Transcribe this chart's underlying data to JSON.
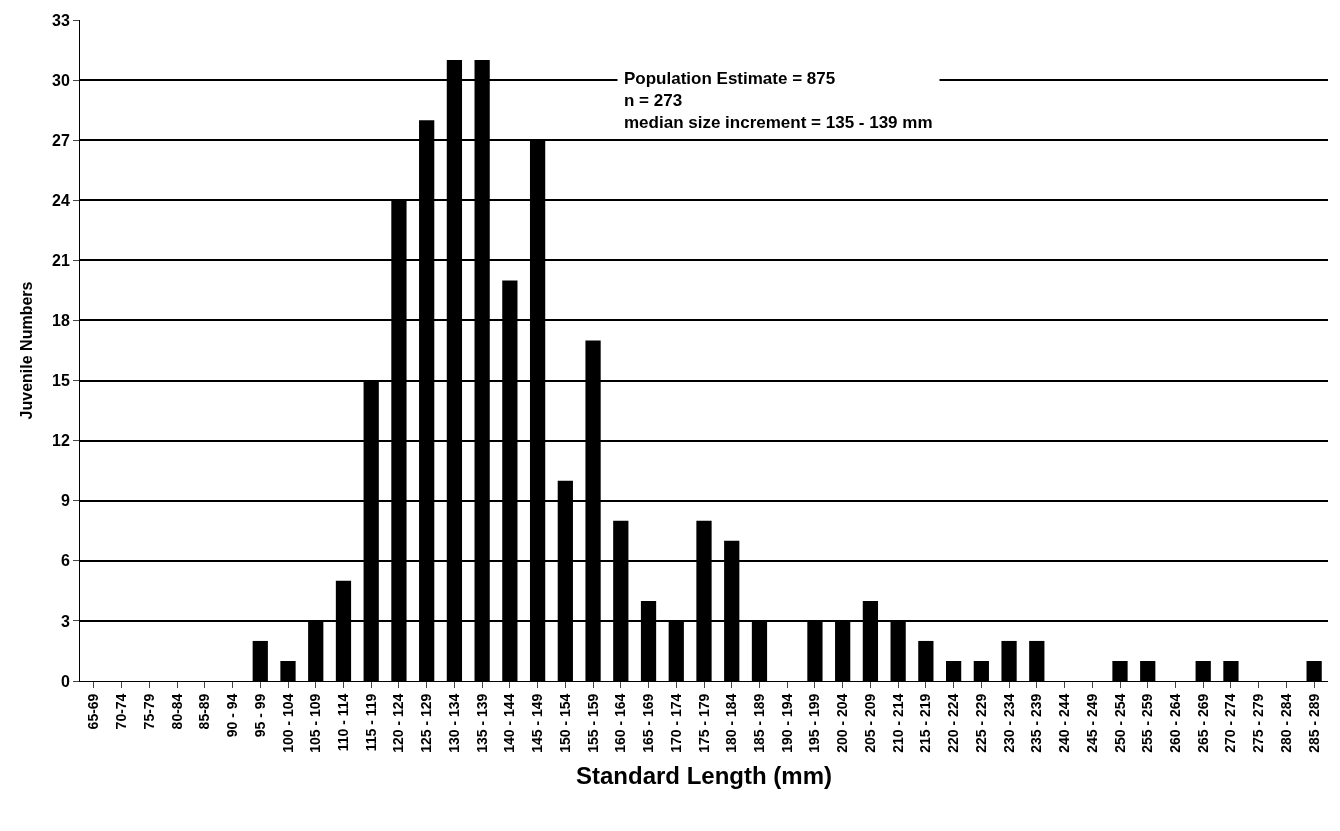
{
  "chart_data": {
    "type": "bar",
    "xlabel": "Standard Length (mm)",
    "ylabel": "Juvenile Numbers",
    "categories": [
      "65-69",
      "70-74",
      "75-79",
      "80-84",
      "85-89",
      "90 - 94",
      "95 - 99",
      "100 - 104",
      "105 - 109",
      "110 - 114",
      "115 - 119",
      "120 - 124",
      "125 - 129",
      "130 - 134",
      "135 - 139",
      "140 - 144",
      "145 - 149",
      "150 - 154",
      "155 - 159",
      "160 - 164",
      "165 - 169",
      "170 - 174",
      "175 - 179",
      "180 - 184",
      "185 - 189",
      "190 - 194",
      "195 - 199",
      "200 - 204",
      "205 - 209",
      "210 - 214",
      "215 - 219",
      "220 - 224",
      "225 - 229",
      "230 - 234",
      "235 - 239",
      "240 - 244",
      "245 - 249",
      "250 - 254",
      "255 - 259",
      "260 - 264",
      "265 - 269",
      "270 - 274",
      "275 - 279",
      "280 - 284",
      "285 - 289"
    ],
    "values": [
      0,
      0,
      0,
      0,
      0,
      0,
      2,
      1,
      3,
      5,
      15,
      24,
      28,
      31,
      31,
      20,
      27,
      10,
      17,
      8,
      4,
      3,
      8,
      7,
      3,
      0,
      3,
      3,
      4,
      3,
      2,
      1,
      1,
      2,
      2,
      0,
      0,
      1,
      1,
      0,
      1,
      1,
      0,
      0,
      1
    ],
    "color": "#000000",
    "ylim": [
      0,
      33
    ],
    "yticks": [
      0,
      3,
      6,
      9,
      12,
      15,
      18,
      21,
      24,
      27,
      30,
      33
    ],
    "grid": "y",
    "annotations": [
      "Population Estimate = 875\nn = 273\nmedian size increment = 135 - 139 mm"
    ]
  }
}
